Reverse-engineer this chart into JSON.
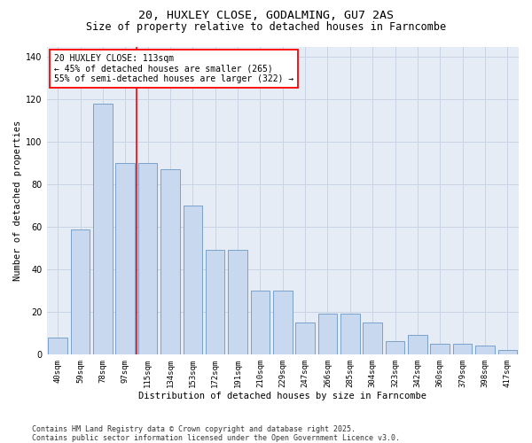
{
  "title1": "20, HUXLEY CLOSE, GODALMING, GU7 2AS",
  "title2": "Size of property relative to detached houses in Farncombe",
  "xlabel": "Distribution of detached houses by size in Farncombe",
  "ylabel": "Number of detached properties",
  "bar_data": [
    {
      "label": "40sqm",
      "value": 8
    },
    {
      "label": "59sqm",
      "value": 59
    },
    {
      "label": "78sqm",
      "value": 118
    },
    {
      "label": "97sqm",
      "value": 90
    },
    {
      "label": "115sqm",
      "value": 90
    },
    {
      "label": "134sqm",
      "value": 87
    },
    {
      "label": "153sqm",
      "value": 70
    },
    {
      "label": "172sqm",
      "value": 49
    },
    {
      "label": "191sqm",
      "value": 49
    },
    {
      "label": "210sqm",
      "value": 30
    },
    {
      "label": "229sqm",
      "value": 30
    },
    {
      "label": "247sqm",
      "value": 15
    },
    {
      "label": "266sqm",
      "value": 19
    },
    {
      "label": "285sqm",
      "value": 19
    },
    {
      "label": "304sqm",
      "value": 15
    },
    {
      "label": "323sqm",
      "value": 6
    },
    {
      "label": "342sqm",
      "value": 9
    },
    {
      "label": "360sqm",
      "value": 5
    },
    {
      "label": "379sqm",
      "value": 5
    },
    {
      "label": "398sqm",
      "value": 4
    },
    {
      "label": "417sqm",
      "value": 2
    }
  ],
  "bar_color": "#c8d8ee",
  "bar_edge_color": "#6b98c4",
  "vline_x_index": 3.5,
  "vline_color": "red",
  "annotation_text": "20 HUXLEY CLOSE: 113sqm\n← 45% of detached houses are smaller (265)\n55% of semi-detached houses are larger (322) →",
  "annotation_box_facecolor": "white",
  "annotation_box_edgecolor": "red",
  "ylim": [
    0,
    145
  ],
  "yticks": [
    0,
    20,
    40,
    60,
    80,
    100,
    120,
    140
  ],
  "grid_color": "#c8d4e4",
  "background_color": "#e6ecf5",
  "footer": "Contains HM Land Registry data © Crown copyright and database right 2025.\nContains public sector information licensed under the Open Government Licence v3.0.",
  "title_fontsize": 9.5,
  "subtitle_fontsize": 8.5,
  "axis_label_fontsize": 7.5,
  "tick_fontsize": 6.5,
  "annotation_fontsize": 7,
  "footer_fontsize": 6
}
